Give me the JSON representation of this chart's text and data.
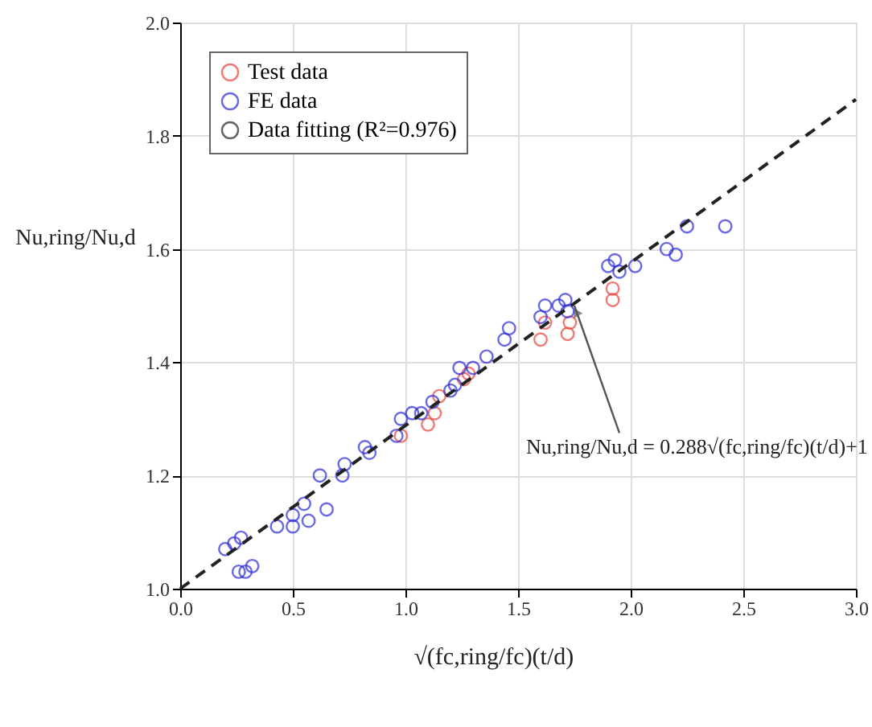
{
  "chart_data": {
    "type": "scatter",
    "xlabel": "√(fc,ring/fc)(t/d)",
    "ylabel": "Nu,ring/Nu,d",
    "xlim": [
      0,
      3
    ],
    "xticks": [
      {
        "value": 0,
        "label": "0.0"
      },
      0.5,
      {
        "value": 1,
        "label": "1.0"
      },
      1.5,
      {
        "value": 2,
        "label": "2.0"
      },
      2.5,
      {
        "value": 3,
        "label": "3.0"
      }
    ],
    "ylim": [
      1,
      2
    ],
    "yticks": [
      {
        "value": 1,
        "label": "1.0"
      },
      1.2,
      1.4,
      1.6,
      1.8,
      {
        "value": 2,
        "label": "2.0"
      }
    ],
    "grid": true,
    "legend": "top left",
    "series": [
      {
        "name": "Test data",
        "color": "#e8463c",
        "marker": "circle",
        "x": [
          0.98,
          1.1,
          1.13,
          1.15,
          1.26,
          1.28,
          1.6,
          1.62,
          1.72,
          1.73,
          1.92,
          1.92
        ],
        "values": [
          1.27,
          1.29,
          1.31,
          1.34,
          1.37,
          1.38,
          1.44,
          1.47,
          1.45,
          1.47,
          1.51,
          1.53
        ]
      },
      {
        "name": "FE data",
        "color": "#2b2bd6",
        "marker": "circle",
        "x": [
          0.2,
          0.24,
          0.27,
          0.26,
          0.29,
          0.32,
          0.43,
          0.5,
          0.5,
          0.55,
          0.57,
          0.62,
          0.65,
          0.72,
          0.73,
          0.82,
          0.84,
          0.96,
          0.98,
          1.03,
          1.07,
          1.12,
          1.2,
          1.22,
          1.24,
          1.3,
          1.36,
          1.44,
          1.46,
          1.6,
          1.62,
          1.68,
          1.71,
          1.72,
          1.9,
          1.93,
          1.95,
          2.02,
          2.16,
          2.2,
          2.25,
          2.42
        ],
        "values": [
          1.07,
          1.08,
          1.09,
          1.03,
          1.03,
          1.04,
          1.11,
          1.13,
          1.11,
          1.15,
          1.12,
          1.2,
          1.14,
          1.2,
          1.22,
          1.25,
          1.24,
          1.27,
          1.3,
          1.31,
          1.31,
          1.33,
          1.35,
          1.36,
          1.39,
          1.39,
          1.41,
          1.44,
          1.46,
          1.48,
          1.5,
          1.5,
          1.51,
          1.49,
          1.57,
          1.58,
          1.56,
          1.57,
          1.6,
          1.59,
          1.64,
          1.64
        ]
      },
      {
        "name": "Data fitting (R²=0.976)",
        "color": "#222222",
        "type": "line",
        "line_style": "dashed",
        "x": [
          0,
          3
        ],
        "values": [
          1,
          1.864
        ]
      }
    ],
    "annotations": [
      {
        "text": "Nu,ring/Nu,d = 0.288√(fc,ring/fc)(t/d)+1",
        "x": 1.75,
        "y": 1.5
      }
    ]
  }
}
